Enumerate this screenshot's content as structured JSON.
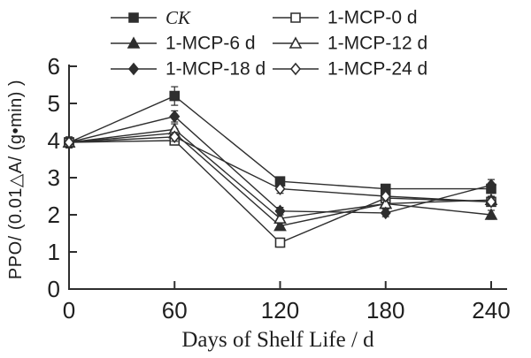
{
  "chart_data": {
    "type": "line",
    "title": "",
    "xlabel": "Days of Shelf Life / d",
    "ylabel": "PPO/ (0.01△A/ (g•min) )",
    "x": [
      0,
      60,
      120,
      180,
      240
    ],
    "xticks": [
      0,
      60,
      120,
      180,
      240
    ],
    "yticks": [
      0,
      1,
      2,
      3,
      4,
      5,
      6
    ],
    "xlim": [
      0,
      249
    ],
    "ylim": [
      0,
      6
    ],
    "grid": false,
    "legend_position": "top",
    "line_color": "#2e2e2e",
    "series": [
      {
        "name": "CK",
        "marker": "square",
        "fill": "filled",
        "italic": true,
        "values": [
          3.95,
          5.2,
          2.9,
          2.7,
          2.7
        ],
        "errors": [
          0.15,
          0.25,
          0.12,
          0.12,
          0.12
        ]
      },
      {
        "name": "1-MCP-0 d",
        "marker": "square",
        "fill": "open",
        "values": [
          3.95,
          4.0,
          1.25,
          2.45,
          2.35
        ],
        "errors": [
          0.1,
          0.12,
          0.12,
          0.1,
          0.1
        ]
      },
      {
        "name": "1-MCP-6 d",
        "marker": "triangle",
        "fill": "filled",
        "values": [
          3.95,
          4.2,
          1.7,
          2.3,
          2.0
        ],
        "errors": [
          0.1,
          0.12,
          0.1,
          0.1,
          0.12
        ]
      },
      {
        "name": "1-MCP-12 d",
        "marker": "triangle",
        "fill": "open",
        "values": [
          3.95,
          4.3,
          1.9,
          2.3,
          2.4
        ],
        "errors": [
          0.1,
          0.15,
          0.1,
          0.1,
          0.1
        ]
      },
      {
        "name": "1-MCP-18 d",
        "marker": "diamond",
        "fill": "filled",
        "values": [
          3.95,
          4.65,
          2.1,
          2.05,
          2.8
        ],
        "errors": [
          0.1,
          0.15,
          0.1,
          0.1,
          0.15
        ]
      },
      {
        "name": "1-MCP-24 d",
        "marker": "diamond",
        "fill": "open",
        "values": [
          3.95,
          4.1,
          2.7,
          2.5,
          2.35
        ],
        "errors": [
          0.1,
          0.12,
          0.12,
          0.1,
          0.1
        ]
      }
    ]
  }
}
